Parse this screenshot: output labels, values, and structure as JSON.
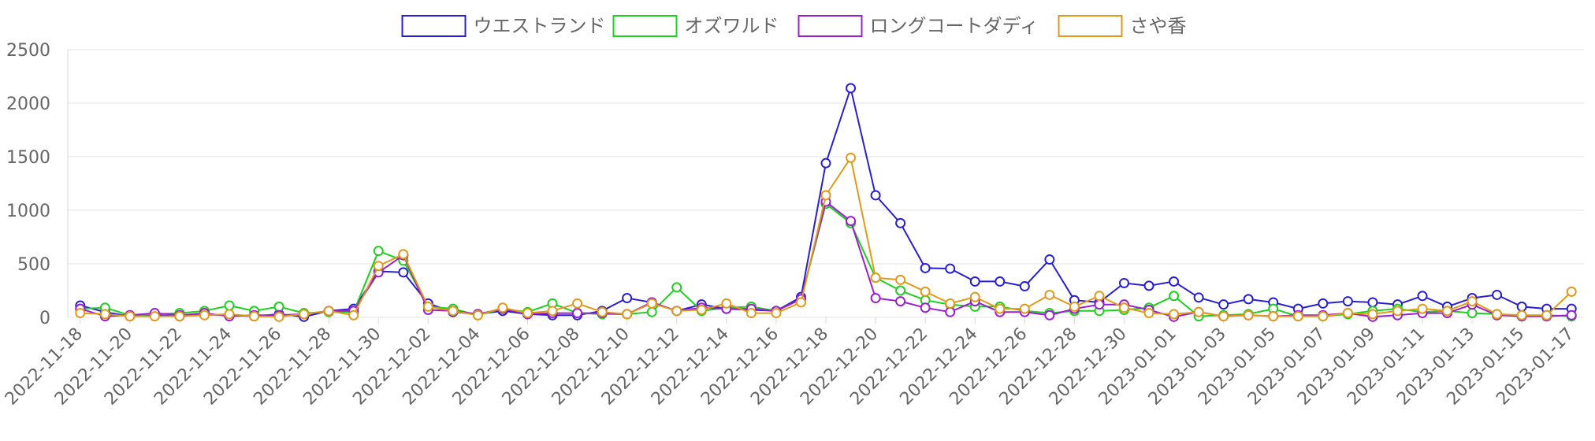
{
  "chart_data": {
    "type": "line",
    "title": "",
    "xlabel": "",
    "ylabel": "",
    "ylim": [
      0,
      2500
    ],
    "yticks": [
      0,
      500,
      1000,
      1500,
      2000,
      2500
    ],
    "grid": true,
    "legend_position": "top-center",
    "categories": [
      "2022-11-18",
      "2022-11-19",
      "2022-11-20",
      "2022-11-21",
      "2022-11-22",
      "2022-11-23",
      "2022-11-24",
      "2022-11-25",
      "2022-11-26",
      "2022-11-27",
      "2022-11-28",
      "2022-11-29",
      "2022-11-30",
      "2022-12-01",
      "2022-12-02",
      "2022-12-03",
      "2022-12-04",
      "2022-12-05",
      "2022-12-06",
      "2022-12-07",
      "2022-12-08",
      "2022-12-09",
      "2022-12-10",
      "2022-12-11",
      "2022-12-12",
      "2022-12-13",
      "2022-12-14",
      "2022-12-15",
      "2022-12-16",
      "2022-12-17",
      "2022-12-18",
      "2022-12-19",
      "2022-12-20",
      "2022-12-21",
      "2022-12-22",
      "2022-12-23",
      "2022-12-24",
      "2022-12-25",
      "2022-12-26",
      "2022-12-27",
      "2022-12-28",
      "2022-12-29",
      "2022-12-30",
      "2022-12-31",
      "2023-01-01",
      "2023-01-02",
      "2023-01-03",
      "2023-01-04",
      "2023-01-05",
      "2023-01-06",
      "2023-01-07",
      "2023-01-08",
      "2023-01-09",
      "2023-01-10",
      "2023-01-11",
      "2023-01-12",
      "2023-01-13",
      "2023-01-14",
      "2023-01-15",
      "2023-01-16",
      "2023-01-17"
    ],
    "x_tick_labels": [
      "2022-11-18",
      "2022-11-20",
      "2022-11-22",
      "2022-11-24",
      "2022-11-26",
      "2022-11-28",
      "2022-11-30",
      "2022-12-02",
      "2022-12-04",
      "2022-12-06",
      "2022-12-08",
      "2022-12-10",
      "2022-12-12",
      "2022-12-14",
      "2022-12-16",
      "2022-12-18",
      "2022-12-20",
      "2022-12-22",
      "2022-12-24",
      "2022-12-26",
      "2022-12-28",
      "2022-12-30",
      "2023-01-01",
      "2023-01-03",
      "2023-01-05",
      "2023-01-07",
      "2023-01-09",
      "2023-01-11",
      "2023-01-13",
      "2023-01-15",
      "2023-01-17"
    ],
    "series": [
      {
        "name": "ウエストランド",
        "color": "#2a1fd0",
        "values": [
          110,
          50,
          10,
          20,
          10,
          25,
          20,
          10,
          30,
          5,
          60,
          80,
          430,
          420,
          130,
          50,
          30,
          60,
          30,
          20,
          20,
          60,
          180,
          140,
          60,
          120,
          80,
          70,
          60,
          190,
          1440,
          2140,
          1140,
          880,
          460,
          455,
          335,
          335,
          290,
          540,
          160,
          140,
          320,
          295,
          335,
          185,
          120,
          170,
          140,
          80,
          130,
          150,
          140,
          120,
          200,
          100,
          180,
          210,
          100,
          80,
          80
        ]
      },
      {
        "name": "オズワルド",
        "color": "#1fcf1f",
        "values": [
          80,
          90,
          20,
          30,
          40,
          60,
          110,
          60,
          100,
          40,
          50,
          50,
          620,
          530,
          100,
          80,
          20,
          80,
          50,
          130,
          40,
          30,
          30,
          50,
          280,
          60,
          90,
          100,
          60,
          170,
          1060,
          880,
          370,
          250,
          160,
          120,
          100,
          100,
          60,
          40,
          60,
          60,
          70,
          90,
          200,
          10,
          20,
          30,
          80,
          10,
          10,
          30,
          60,
          80,
          50,
          60,
          40,
          30,
          10,
          20,
          10
        ]
      },
      {
        "name": "ロングコートダディ",
        "color": "#9b1fd0",
        "values": [
          80,
          10,
          20,
          40,
          20,
          40,
          10,
          20,
          20,
          30,
          60,
          60,
          420,
          580,
          70,
          60,
          30,
          80,
          30,
          40,
          40,
          40,
          30,
          140,
          60,
          90,
          80,
          80,
          60,
          170,
          1080,
          900,
          180,
          150,
          90,
          50,
          150,
          50,
          50,
          20,
          80,
          120,
          120,
          70,
          5,
          50,
          10,
          20,
          10,
          20,
          20,
          40,
          5,
          20,
          40,
          40,
          120,
          20,
          10,
          10,
          20
        ]
      },
      {
        "name": "さや香",
        "color": "#e09a1a",
        "values": [
          40,
          30,
          10,
          10,
          10,
          20,
          30,
          10,
          5,
          30,
          60,
          20,
          480,
          590,
          100,
          60,
          20,
          90,
          40,
          60,
          130,
          50,
          30,
          130,
          60,
          70,
          130,
          40,
          40,
          140,
          1140,
          1490,
          370,
          350,
          240,
          130,
          190,
          80,
          80,
          210,
          100,
          200,
          90,
          40,
          30,
          50,
          10,
          20,
          10,
          10,
          10,
          40,
          30,
          60,
          80,
          60,
          150,
          30,
          20,
          20,
          240
        ]
      }
    ]
  }
}
